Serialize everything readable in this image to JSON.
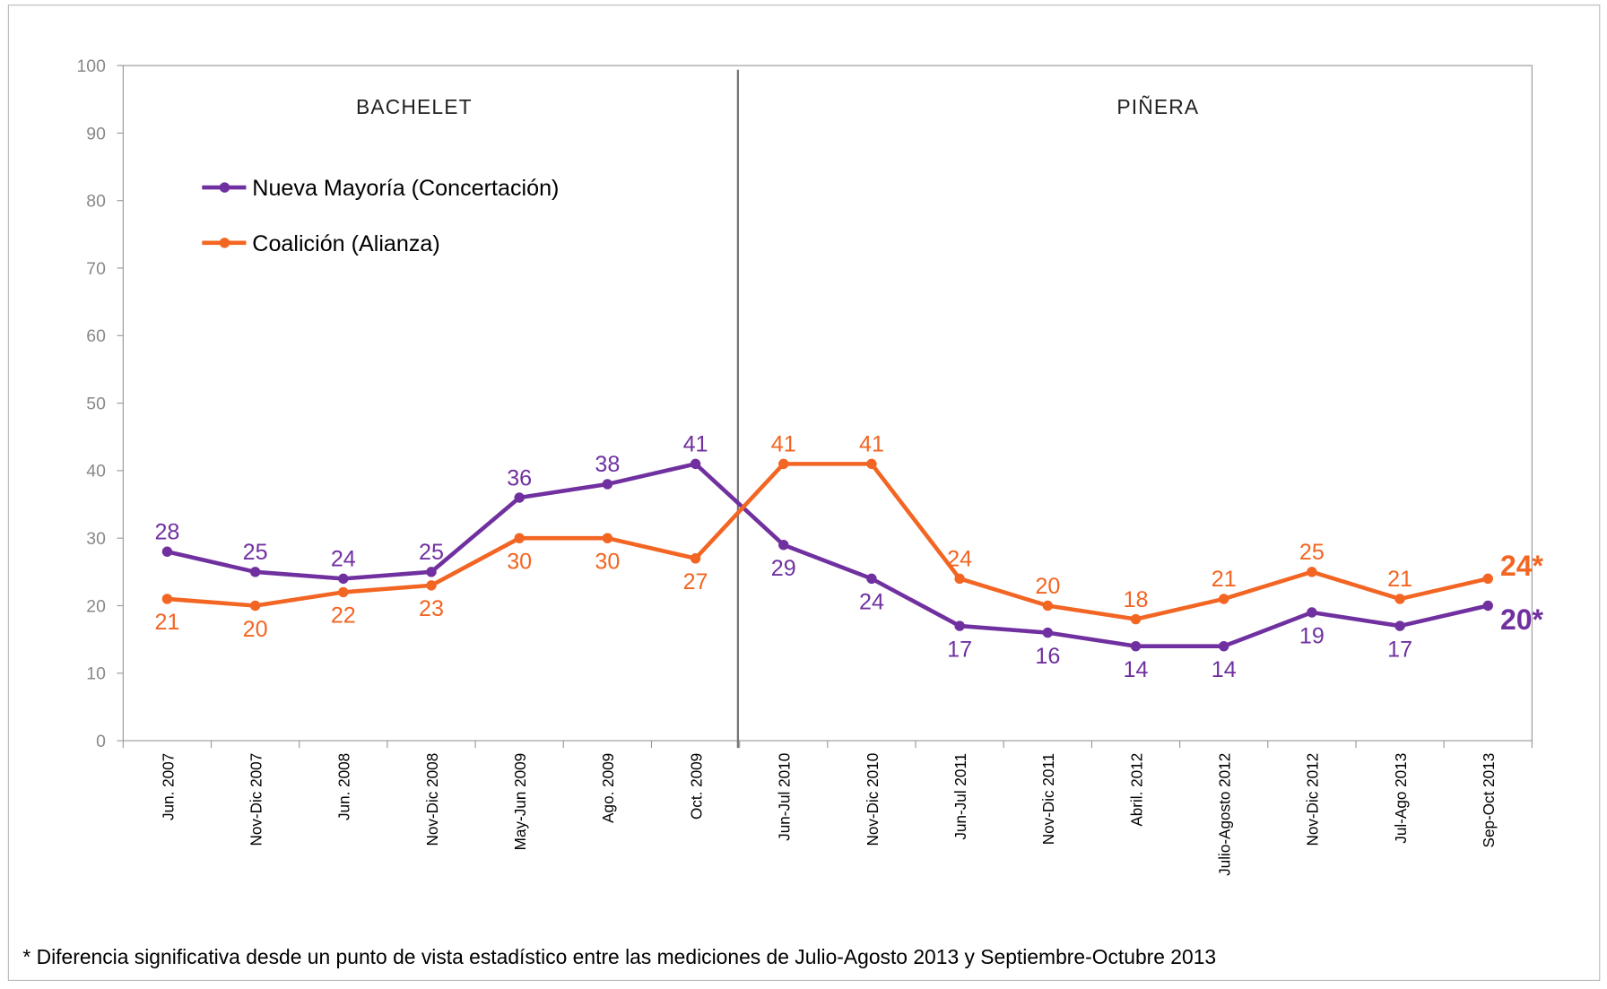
{
  "chart_data": {
    "type": "line",
    "categories": [
      "Jun. 2007",
      "Nov-Dic 2007",
      "Jun. 2008",
      "Nov-Dic 2008",
      "May-Jun 2009",
      "Ago. 2009",
      "Oct. 2009",
      "Jun-Jul 2010",
      "Nov-Dic 2010",
      "Jun-Jul 2011",
      "Nov-Dic 2011",
      "Abril. 2012",
      "Julio-Agosto 2012",
      "Nov-Dic 2012",
      "Jul-Ago 2013",
      "Sep-Oct 2013"
    ],
    "series": [
      {
        "name": "Nueva Mayoría (Concertación)",
        "color": "#7030a0",
        "values": [
          28,
          25,
          24,
          25,
          36,
          38,
          41,
          29,
          24,
          17,
          16,
          14,
          14,
          19,
          17,
          20
        ],
        "value_labels": [
          "28",
          "25",
          "24",
          "25",
          "36",
          "38",
          "41",
          "29",
          "24",
          "17",
          "16",
          "14",
          "14",
          "19",
          "17",
          "20*"
        ]
      },
      {
        "name": "Coalición (Alianza)",
        "color": "#f26522",
        "values": [
          21,
          20,
          22,
          23,
          30,
          30,
          27,
          41,
          41,
          24,
          20,
          18,
          21,
          25,
          21,
          24
        ],
        "value_labels": [
          "21",
          "20",
          "22",
          "23",
          "30",
          "30",
          "27",
          "41",
          "41",
          "24",
          "20",
          "18",
          "21",
          "25",
          "21",
          "24*"
        ]
      }
    ],
    "ylim": [
      0,
      100
    ],
    "yticks": [
      0,
      10,
      20,
      30,
      40,
      50,
      60,
      70,
      80,
      90,
      100
    ],
    "annotations": [
      "BACHELET",
      "PIÑERA"
    ],
    "footnote": "* Diferencia significativa desde un punto de vista estadístico entre las mediciones de Julio-Agosto 2013 y Septiembre-Octubre 2013"
  }
}
